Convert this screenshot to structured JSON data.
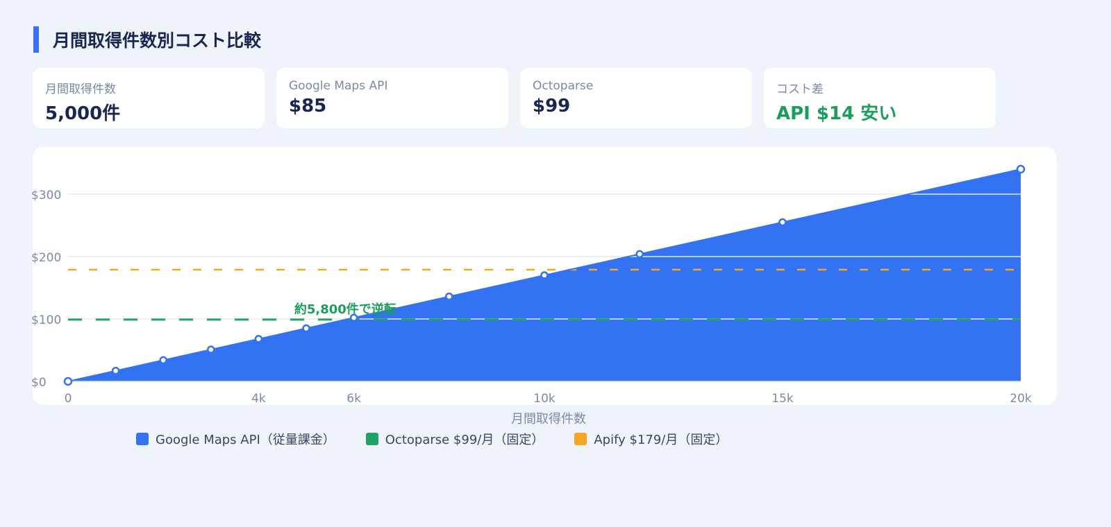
{
  "title": "月間取得件数別コスト比較",
  "cards": [
    {
      "label": "月間取得件数",
      "value": "5,000件"
    },
    {
      "label": "Google Maps API",
      "value": "$85"
    },
    {
      "label": "Octoparse",
      "value": "$99"
    },
    {
      "label": "コスト差",
      "value": "API $14 安い",
      "color": "#1a9e5c"
    }
  ],
  "chart_data": {
    "type": "area",
    "xlabel": "月間取得件数",
    "ylabel": "",
    "xlim": [
      0,
      20000
    ],
    "ylim": [
      0,
      340
    ],
    "x_ticks": [
      {
        "v": 0,
        "label": "0"
      },
      {
        "v": 4000,
        "label": "4k"
      },
      {
        "v": 6000,
        "label": "6k"
      },
      {
        "v": 10000,
        "label": "10k"
      },
      {
        "v": 15000,
        "label": "15k"
      },
      {
        "v": 20000,
        "label": "20k"
      }
    ],
    "y_ticks": [
      {
        "v": 0,
        "label": "$0"
      },
      {
        "v": 100,
        "label": "$100"
      },
      {
        "v": 200,
        "label": "$200"
      },
      {
        "v": 300,
        "label": "$300"
      }
    ],
    "grid": true,
    "legend_position": "bottom",
    "series": [
      {
        "name": "Google Maps API（従量課金）",
        "color": "#3372f2",
        "style": "area",
        "x": [
          0,
          1000,
          2000,
          3000,
          4000,
          5000,
          6000,
          8000,
          10000,
          12000,
          15000,
          20000
        ],
        "y": [
          0,
          17,
          34,
          51,
          68,
          85,
          102,
          136,
          170,
          204,
          255,
          340
        ]
      },
      {
        "name": "Octoparse $99/月（固定）",
        "color": "#1ea362",
        "style": "dashed",
        "y_const": 99
      },
      {
        "name": "Apify $179/月（固定）",
        "color": "#f5a623",
        "style": "dashed",
        "y_const": 179
      }
    ],
    "annotation": {
      "text": "約5,800件で逆転",
      "x": 5800,
      "y": 99,
      "color": "#1a9e5c"
    }
  }
}
